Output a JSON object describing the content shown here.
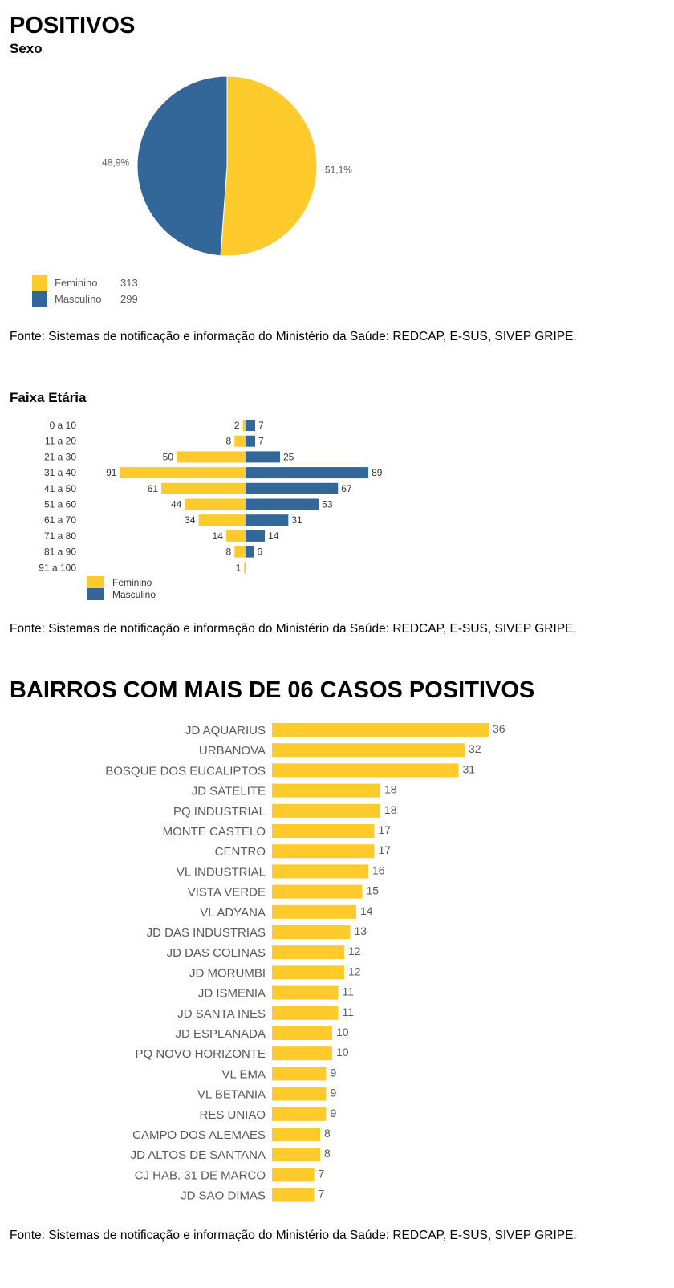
{
  "colors": {
    "feminino": "#FFCA2C",
    "masculino": "#336699",
    "axis_text": "#595959"
  },
  "section1": {
    "title": "POSITIVOS",
    "subtitle": "Sexo",
    "source": "Fonte:  Sistemas de notificação e informação do Ministério da Saúde: REDCAP, E-SUS, SIVEP GRIPE."
  },
  "section2": {
    "subtitle": "Faixa Etária",
    "source": "Fonte:  Sistemas de notificação e informação do Ministério da Saúde: REDCAP, E-SUS, SIVEP GRIPE."
  },
  "section3": {
    "title": "BAIRROS COM MAIS DE 06 CASOS POSITIVOS",
    "source": "Fonte:  Sistemas de notificação e informação do Ministério da Saúde: REDCAP, E-SUS, SIVEP GRIPE."
  },
  "chart_data": [
    {
      "type": "pie",
      "slices": [
        {
          "name": "Feminino",
          "value": 313,
          "percent_label": "51,1%",
          "color": "#FFCA2C"
        },
        {
          "name": "Masculino",
          "value": 299,
          "percent_label": "48,9%",
          "color": "#336699"
        }
      ],
      "legend": "bottom-left"
    },
    {
      "type": "bar",
      "orientation": "horizontal-diverging",
      "categories": [
        "0 a 10",
        "11 a 20",
        "21 a 30",
        "31 a 40",
        "41 a 50",
        "51 a 60",
        "61 a 70",
        "71 a 80",
        "81 a 90",
        "91 a 100"
      ],
      "series": [
        {
          "name": "Feminino",
          "values": [
            2,
            8,
            50,
            91,
            61,
            44,
            34,
            14,
            8,
            1
          ],
          "color": "#FFCA2C"
        },
        {
          "name": "Masculino",
          "values": [
            7,
            7,
            25,
            89,
            67,
            53,
            31,
            14,
            6,
            null
          ],
          "color": "#336699"
        }
      ],
      "legend": "bottom-left"
    },
    {
      "type": "bar",
      "orientation": "horizontal",
      "categories": [
        "JD AQUARIUS",
        "URBANOVA",
        "BOSQUE DOS EUCALIPTOS",
        "JD SATELITE",
        "PQ INDUSTRIAL",
        "MONTE CASTELO",
        "CENTRO",
        "VL INDUSTRIAL",
        "VISTA VERDE",
        "VL ADYANA",
        "JD DAS INDUSTRIAS",
        "JD DAS COLINAS",
        "JD MORUMBI",
        "JD ISMENIA",
        "JD SANTA INES",
        "JD ESPLANADA",
        "PQ NOVO HORIZONTE",
        "VL EMA",
        "VL BETANIA",
        "RES UNIAO",
        "CAMPO DOS ALEMAES",
        "JD ALTOS DE SANTANA",
        "CJ HAB. 31 DE MARCO",
        "JD SAO DIMAS"
      ],
      "values": [
        36,
        32,
        31,
        18,
        18,
        17,
        17,
        16,
        15,
        14,
        13,
        12,
        12,
        11,
        11,
        10,
        10,
        9,
        9,
        9,
        8,
        8,
        7,
        7
      ],
      "color": "#FFCA2C"
    }
  ]
}
